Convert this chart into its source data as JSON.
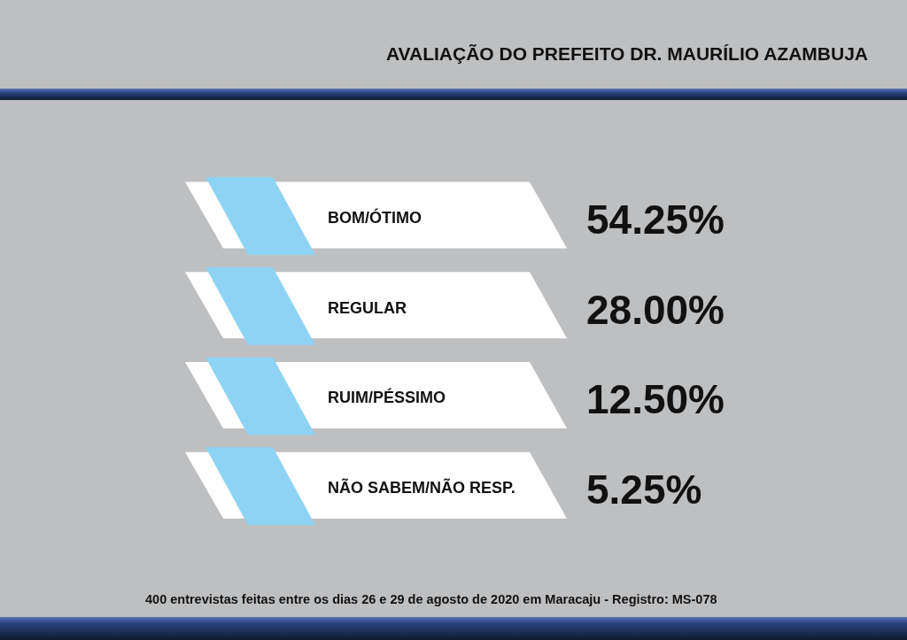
{
  "chart_data": {
    "type": "other",
    "title": "AVALIAÇÃO DO PREFEITO DR. MAURÍLIO AZAMBUJA",
    "categories": [
      "BOM/ÓTIMO",
      "REGULAR",
      "RUIM/PÉSSIMO",
      "NÃO SABEM/NÃO RESP."
    ],
    "values": [
      54.25,
      28,
      12.5,
      5.25
    ],
    "value_labels": [
      "54.25%",
      "28.00%",
      "12.50%",
      "5.25%"
    ],
    "color": "#ffffff",
    "annotations": [
      "400 entrevistas feitas entre os dias 26 e 29 de agosto de 2020 em Maracaju - Registro: MS-078"
    ]
  }
}
